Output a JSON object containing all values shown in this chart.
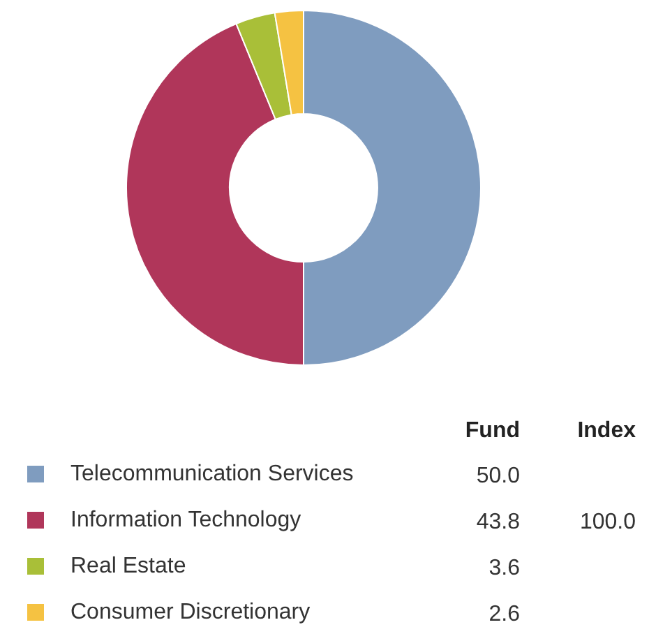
{
  "chart_data": {
    "type": "donut",
    "categories": [
      "Telecommunication Services",
      "Information Technology",
      "Real Estate",
      "Consumer Discretionary"
    ],
    "values": [
      50.0,
      43.8,
      3.6,
      2.6
    ],
    "value_labels": [
      "50.0",
      "43.8",
      "3.6",
      "2.6"
    ],
    "colors": [
      "#7f9cbf",
      "#b0365a",
      "#a9bf38",
      "#f5c242"
    ],
    "legend": "bottom",
    "annotations": [
      "Fund",
      "Index",
      {
        "text": "100.0",
        "x": "Information Technology"
      }
    ]
  }
}
